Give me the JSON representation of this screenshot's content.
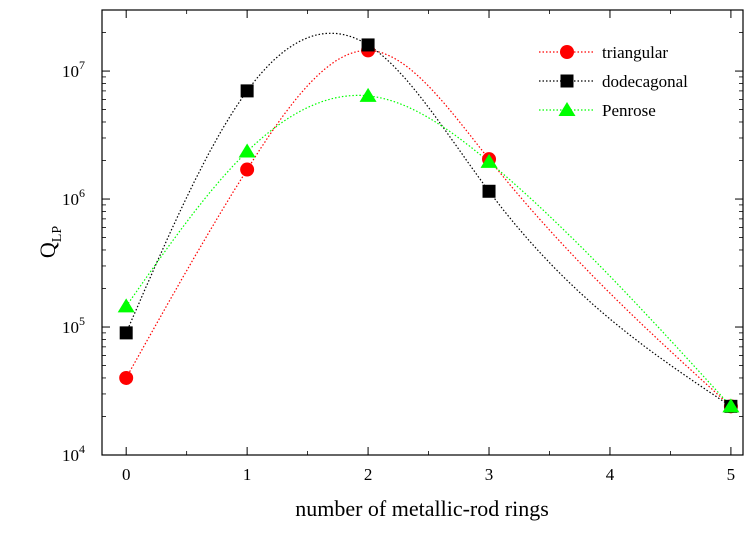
{
  "chart_data": {
    "type": "scatter",
    "title": "",
    "xlabel": "number of metallic-rod rings",
    "ylabel": "Q",
    "ylabel_sub": "LP",
    "xlim": [
      -0.2,
      5.1
    ],
    "ylim": [
      10000,
      30000000
    ],
    "yscale": "log",
    "x_ticks": [
      "0",
      "1",
      "2",
      "3",
      "4",
      "5"
    ],
    "y_ticks": [
      {
        "base": "10",
        "exp": "4"
      },
      {
        "base": "10",
        "exp": "5"
      },
      {
        "base": "10",
        "exp": "6"
      },
      {
        "base": "10",
        "exp": "7"
      }
    ],
    "grid": false,
    "legend_position": "top-right",
    "series": [
      {
        "name": "triangular",
        "marker": "circle",
        "color": "#ff0000",
        "x": [
          0,
          1,
          2,
          3,
          5
        ],
        "y": [
          40000,
          1700000,
          14500000,
          2050000,
          24000
        ]
      },
      {
        "name": "dodecagonal",
        "marker": "square",
        "color": "#000000",
        "x": [
          0,
          1,
          2,
          3,
          5
        ],
        "y": [
          90000,
          7000000,
          16000000,
          1150000,
          24000
        ]
      },
      {
        "name": "Penrose",
        "marker": "triangle",
        "color": "#00ff00",
        "x": [
          0,
          1,
          2,
          3,
          5
        ],
        "y": [
          145000,
          2350000,
          6400000,
          1950000,
          24000
        ]
      }
    ]
  }
}
